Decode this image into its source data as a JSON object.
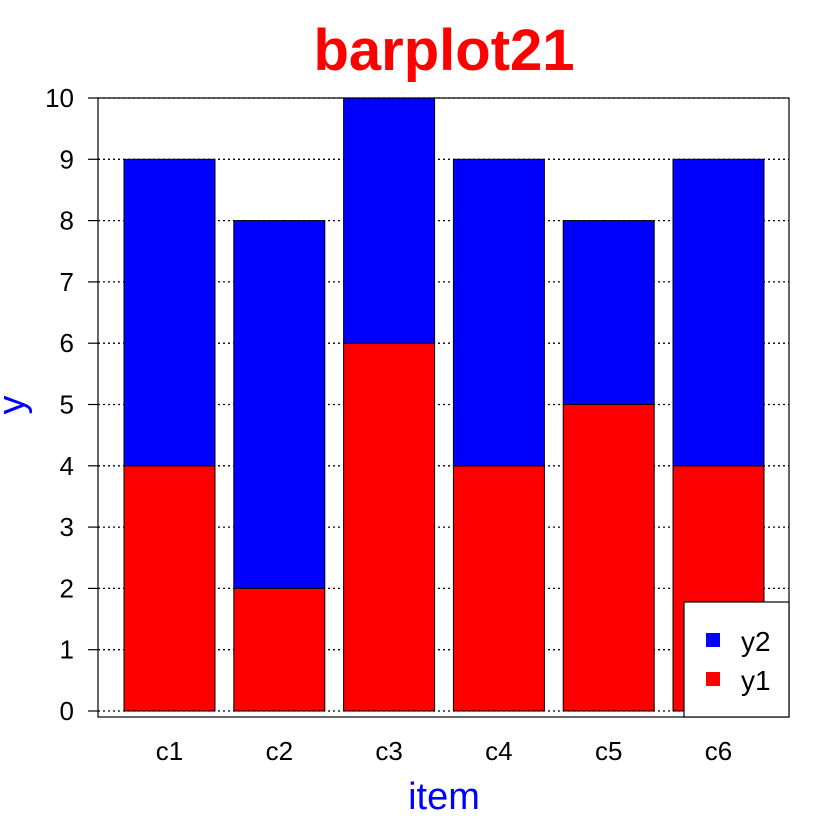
{
  "chart_data": {
    "type": "bar",
    "stacked": true,
    "title": "barplot21",
    "xlabel": "item",
    "ylabel": "y",
    "categories": [
      "c1",
      "c2",
      "c3",
      "c4",
      "c5",
      "c6"
    ],
    "series": [
      {
        "name": "y1",
        "values": [
          4,
          2,
          6,
          4,
          5,
          4
        ],
        "color": "#ff0000"
      },
      {
        "name": "y2",
        "values": [
          5,
          6,
          4,
          5,
          3,
          5
        ],
        "color": "#0000ff"
      }
    ],
    "ylim": [
      0,
      10
    ],
    "yticks": [
      "0",
      "1",
      "2",
      "3",
      "4",
      "5",
      "6",
      "7",
      "8",
      "9",
      "10"
    ],
    "grid": "horizontal dotted",
    "legend": {
      "position": "bottom-right",
      "entries": [
        "y2",
        "y1"
      ]
    },
    "title_color": "#ff0000",
    "label_color": "#0000ff"
  }
}
